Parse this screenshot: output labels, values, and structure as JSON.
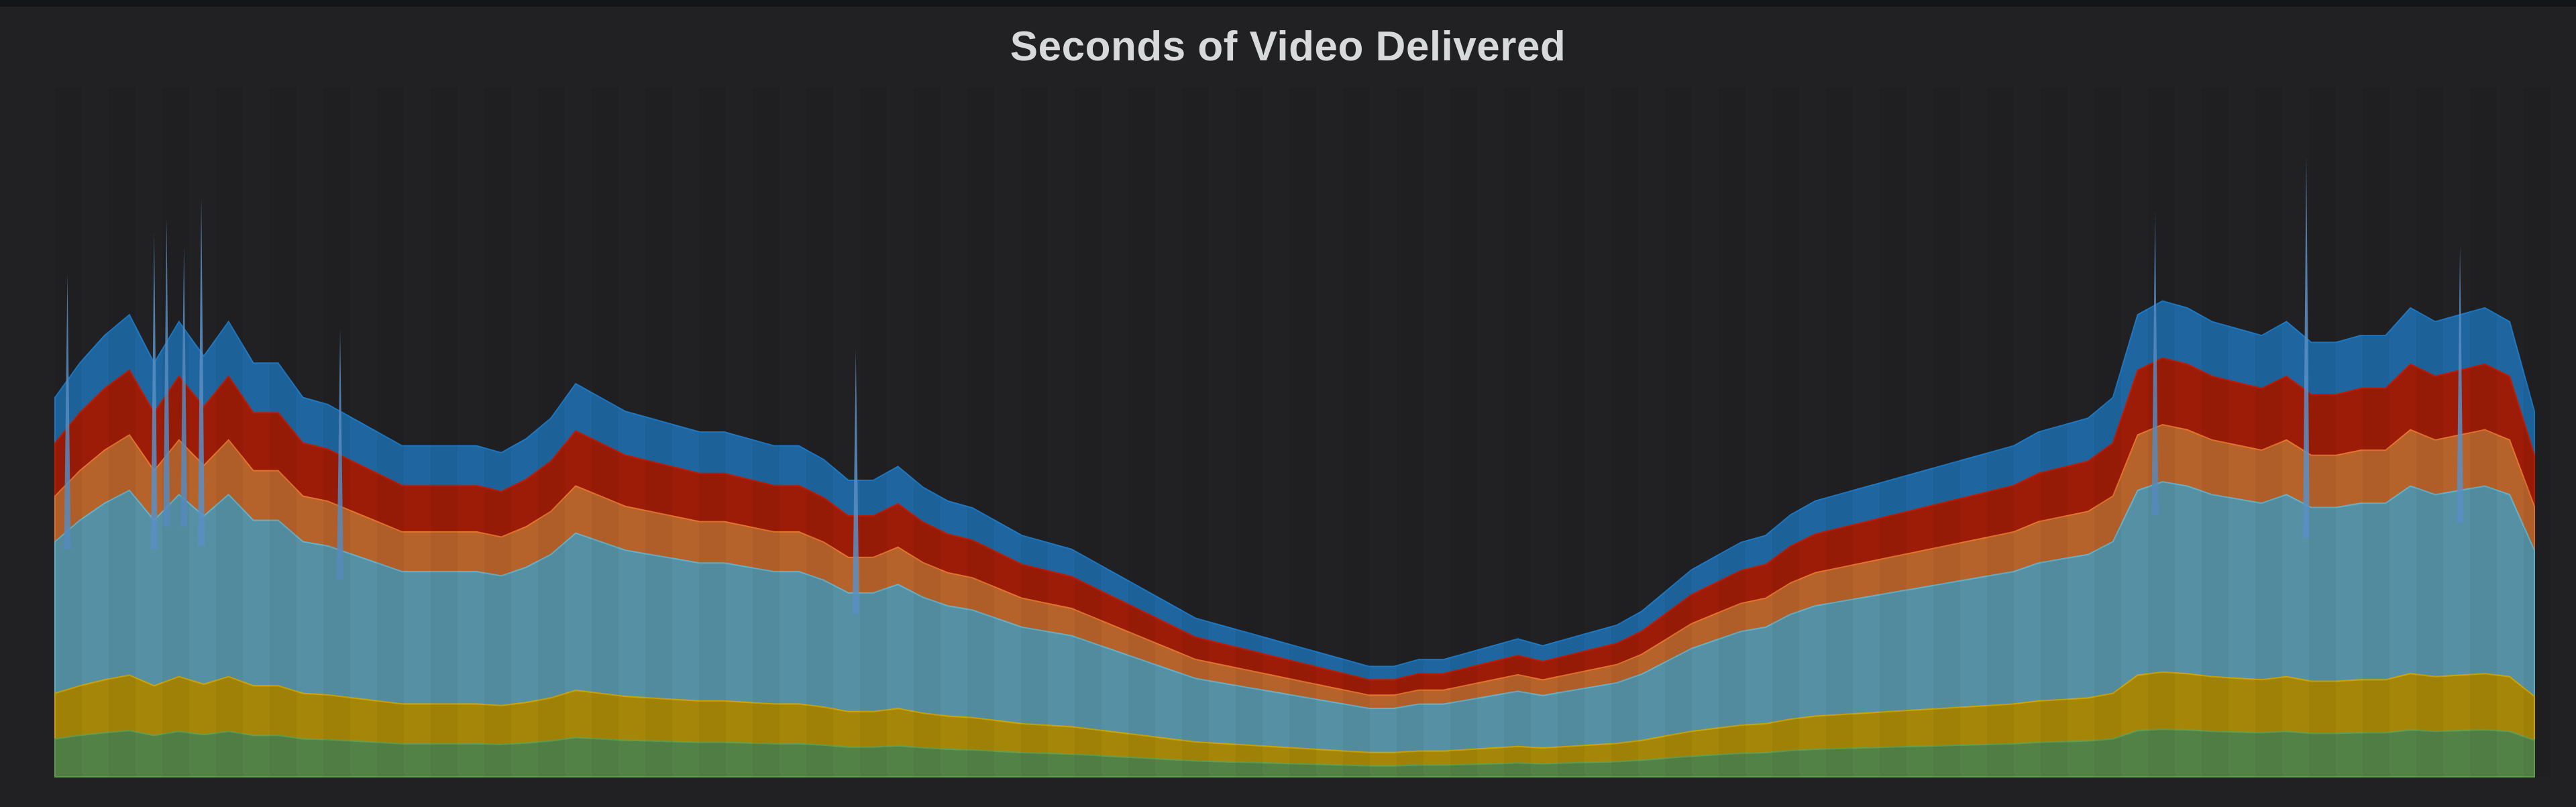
{
  "panel": {
    "title": "Seconds of Video Delivered"
  },
  "chart_data": {
    "type": "area",
    "stacked": true,
    "title": "Seconds of Video Delivered",
    "xlabel": "",
    "ylabel": "",
    "legend": "none",
    "grid": false,
    "ylim": [
      0,
      100
    ],
    "x": [
      0,
      1,
      2,
      3,
      4,
      5,
      6,
      7,
      8,
      9,
      10,
      11,
      12,
      13,
      14,
      15,
      16,
      17,
      18,
      19,
      20,
      21,
      22,
      23,
      24,
      25,
      26,
      27,
      28,
      29,
      30,
      31,
      32,
      33,
      34,
      35,
      36,
      37,
      38,
      39,
      40,
      41,
      42,
      43,
      44,
      45,
      46,
      47,
      48,
      49,
      50,
      51,
      52,
      53,
      54,
      55,
      56,
      57,
      58,
      59,
      60,
      61,
      62,
      63,
      64,
      65,
      66,
      67,
      68,
      69,
      70,
      71,
      72,
      73,
      74,
      75,
      76,
      77,
      78,
      79,
      80,
      81,
      82,
      83,
      84,
      85,
      86,
      87,
      88,
      89,
      90,
      91,
      92,
      93,
      94,
      95,
      96,
      97,
      98,
      99,
      100
    ],
    "series": [
      {
        "color": "#629e51",
        "values": [
          5,
          5,
          5,
          5,
          5,
          5,
          5,
          5,
          5,
          5,
          5,
          5,
          5,
          5,
          5,
          5,
          5,
          5,
          5,
          5,
          5,
          5,
          5,
          5,
          5,
          5,
          5,
          5,
          5,
          5,
          5,
          5,
          5,
          5,
          5,
          5,
          5,
          5,
          5,
          5,
          5,
          5,
          5,
          5,
          5,
          5,
          5,
          5,
          5,
          5,
          5,
          5,
          5,
          5,
          5,
          5,
          5,
          5,
          5,
          5,
          5,
          5,
          5,
          5,
          5,
          5,
          5,
          5,
          5,
          5,
          5,
          5,
          5,
          5,
          5,
          5,
          5,
          5,
          5,
          5,
          5,
          5,
          5,
          5,
          5,
          5,
          5,
          5,
          5,
          5,
          5,
          5,
          5,
          5,
          5,
          5,
          5,
          5,
          5,
          5,
          5
        ]
      },
      {
        "color": "#cca300",
        "values": [
          6,
          6,
          6,
          6,
          6,
          6,
          6,
          6,
          6,
          6,
          6,
          6,
          6,
          6,
          6,
          6,
          6,
          6,
          6,
          6,
          6,
          6,
          6,
          6,
          6,
          6,
          6,
          6,
          6,
          6,
          6,
          6,
          6,
          6,
          6,
          6,
          6,
          6,
          6,
          6,
          6,
          6,
          6,
          6,
          6,
          6,
          6,
          6,
          6,
          6,
          6,
          6,
          6,
          6,
          6,
          6,
          6,
          6,
          6,
          6,
          6,
          6,
          6,
          6,
          6,
          6,
          6,
          6,
          6,
          6,
          6,
          6,
          6,
          6,
          6,
          6,
          6,
          6,
          6,
          6,
          6,
          6,
          6,
          6,
          6,
          6,
          6,
          6,
          6,
          6,
          6,
          6,
          6,
          6,
          6,
          6,
          6,
          6,
          6,
          6,
          6
        ]
      },
      {
        "color": "#64b0c8",
        "values": [
          20,
          20,
          20,
          20,
          20,
          20,
          20,
          20,
          20,
          20,
          20,
          20,
          20,
          20,
          20,
          20,
          20,
          20,
          20,
          20,
          20,
          20,
          20,
          20,
          20,
          20,
          20,
          20,
          20,
          20,
          20,
          20,
          20,
          20,
          20,
          20,
          20,
          20,
          20,
          20,
          20,
          20,
          20,
          20,
          20,
          20,
          20,
          20,
          20,
          20,
          20,
          20,
          20,
          20,
          20,
          20,
          20,
          20,
          20,
          20,
          20,
          20,
          20,
          20,
          20,
          20,
          20,
          20,
          20,
          20,
          20,
          20,
          20,
          20,
          20,
          20,
          20,
          20,
          20,
          20,
          20,
          20,
          20,
          20,
          20,
          20,
          20,
          20,
          20,
          20,
          20,
          20,
          20,
          20,
          20,
          20,
          20,
          20,
          20,
          20,
          20
        ]
      },
      {
        "color": "#e0752d",
        "values": [
          6,
          6,
          6,
          6,
          6,
          6,
          6,
          6,
          6,
          6,
          6,
          6,
          6,
          6,
          6,
          6,
          6,
          6,
          6,
          6,
          6,
          6,
          6,
          6,
          6,
          6,
          6,
          6,
          6,
          6,
          6,
          6,
          6,
          6,
          6,
          6,
          6,
          6,
          6,
          6,
          6,
          6,
          6,
          6,
          6,
          6,
          6,
          6,
          6,
          6,
          6,
          6,
          6,
          6,
          6,
          6,
          6,
          6,
          6,
          6,
          6,
          6,
          6,
          6,
          6,
          6,
          6,
          6,
          6,
          6,
          6,
          6,
          6,
          6,
          6,
          6,
          6,
          6,
          6,
          6,
          6,
          6,
          6,
          6,
          6,
          6,
          6,
          6,
          6,
          6,
          6,
          6,
          6,
          6,
          6,
          6,
          6,
          6,
          6,
          6,
          6
        ]
      },
      {
        "color": "#bf1b00",
        "values": [
          7,
          7,
          7,
          7,
          7,
          7,
          7,
          7,
          7,
          7,
          7,
          7,
          7,
          7,
          7,
          7,
          7,
          7,
          7,
          7,
          7,
          7,
          7,
          7,
          7,
          7,
          7,
          7,
          7,
          7,
          7,
          7,
          7,
          7,
          7,
          7,
          7,
          7,
          7,
          7,
          7,
          7,
          7,
          7,
          7,
          7,
          7,
          7,
          7,
          7,
          7,
          7,
          7,
          7,
          7,
          7,
          7,
          7,
          7,
          7,
          7,
          7,
          7,
          7,
          7,
          7,
          7,
          7,
          7,
          7,
          7,
          7,
          7,
          7,
          7,
          7,
          7,
          7,
          7,
          7,
          7,
          7,
          7,
          7,
          7,
          7,
          7,
          7,
          7,
          7,
          7,
          7,
          7,
          7,
          7,
          7,
          7,
          7,
          7,
          7,
          7
        ]
      },
      {
        "color": "#1f78c1",
        "values": [
          6,
          6,
          6,
          6,
          6,
          6,
          6,
          6,
          6,
          6,
          6,
          6,
          6,
          6,
          6,
          6,
          6,
          6,
          6,
          6,
          6,
          6,
          6,
          6,
          6,
          6,
          6,
          6,
          6,
          6,
          6,
          6,
          6,
          6,
          6,
          6,
          6,
          6,
          6,
          6,
          6,
          6,
          6,
          6,
          6,
          6,
          6,
          6,
          6,
          6,
          6,
          6,
          6,
          6,
          6,
          6,
          6,
          6,
          6,
          6,
          6,
          6,
          6,
          6,
          6,
          6,
          6,
          6,
          6,
          6,
          6,
          6,
          6,
          6,
          6,
          6,
          6,
          6,
          6,
          6,
          6,
          6,
          6,
          6,
          6,
          6,
          6,
          6,
          6,
          6,
          6,
          6,
          6,
          6,
          6,
          6,
          6,
          6,
          6,
          6,
          6
        ]
      }
    ],
    "envelope_total": [
      55,
      60,
      64,
      67,
      60,
      66,
      61,
      66,
      60,
      60,
      55,
      54,
      52,
      50,
      48,
      48,
      48,
      48,
      47,
      49,
      52,
      57,
      55,
      53,
      52,
      51,
      50,
      50,
      49,
      48,
      48,
      46,
      43,
      43,
      45,
      42,
      40,
      39,
      37,
      35,
      34,
      33,
      31,
      29,
      27,
      25,
      23,
      22,
      21,
      20,
      19,
      18,
      17,
      16,
      16,
      17,
      17,
      18,
      19,
      20,
      19,
      20,
      21,
      22,
      24,
      27,
      30,
      32,
      34,
      35,
      38,
      40,
      41,
      42,
      43,
      44,
      45,
      46,
      47,
      48,
      50,
      51,
      52,
      55,
      67,
      69,
      68,
      66,
      65,
      64,
      66,
      63,
      63,
      64,
      64,
      68,
      66,
      67,
      68,
      66,
      53
    ],
    "spikes": [
      {
        "x": 0.5,
        "value": 73
      },
      {
        "x": 4.0,
        "value": 79
      },
      {
        "x": 4.5,
        "value": 81
      },
      {
        "x": 5.2,
        "value": 77
      },
      {
        "x": 5.9,
        "value": 84
      },
      {
        "x": 11.5,
        "value": 65
      },
      {
        "x": 32.3,
        "value": 62
      },
      {
        "x": 84.7,
        "value": 82
      },
      {
        "x": 90.8,
        "value": 90
      },
      {
        "x": 97.0,
        "value": 77
      }
    ]
  }
}
